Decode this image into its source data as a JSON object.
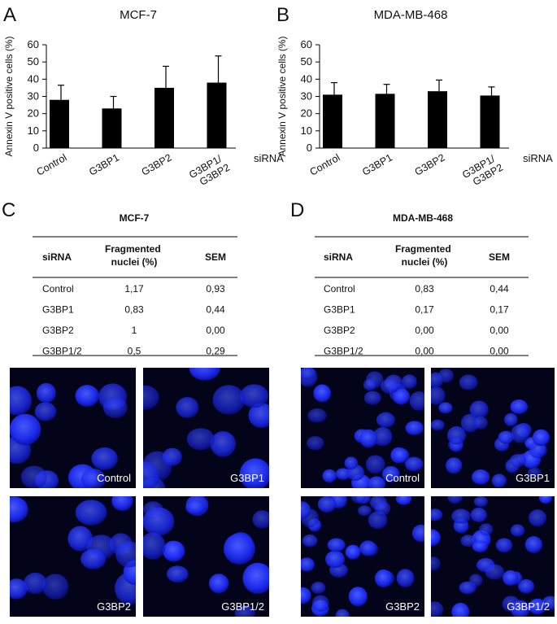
{
  "chart_data": [
    {
      "type": "bar",
      "label": "A",
      "title": "MCF-7",
      "ylabel": "Annexin V positive cells (%)",
      "xlabel": "siRNA",
      "categories": [
        "Control",
        "G3BP1",
        "G3BP2",
        "G3BP1/ G3BP2"
      ],
      "values": [
        28,
        23,
        35,
        38
      ],
      "errors": [
        8.5,
        7,
        12.5,
        15.5
      ],
      "color": "#000000",
      "ylim": [
        0,
        60
      ],
      "yticks": [
        0,
        10,
        20,
        30,
        40,
        50,
        60
      ]
    },
    {
      "type": "bar",
      "label": "B",
      "title": "MDA-MB-468",
      "ylabel": "Annexin V positive cells (%)",
      "xlabel": "siRNA",
      "categories": [
        "Control",
        "G3BP1",
        "G3BP2",
        "G3BP1/ G3BP2"
      ],
      "values": [
        31,
        31.5,
        33,
        30.5
      ],
      "errors": [
        7,
        5.5,
        6.5,
        5
      ],
      "color": "#000000",
      "ylim": [
        0,
        60
      ],
      "yticks": [
        0,
        10,
        20,
        30,
        40,
        50,
        60
      ]
    }
  ],
  "tables": [
    {
      "label": "C",
      "title": "MCF-7",
      "columns": [
        "siRNA",
        "Fragmented nuclei (%)",
        "SEM"
      ],
      "rows": [
        [
          "Control",
          "1,17",
          "0,93"
        ],
        [
          "G3BP1",
          "0,83",
          "0,44"
        ],
        [
          "G3BP2",
          "1",
          "0,00"
        ],
        [
          "G3BP1/2",
          "0,5",
          "0,29"
        ]
      ]
    },
    {
      "label": "D",
      "title": "MDA-MB-468",
      "columns": [
        "siRNA",
        "Fragmented nuclei (%)",
        "SEM"
      ],
      "rows": [
        [
          "Control",
          "0,83",
          "0,44"
        ],
        [
          "G3BP1",
          "0,17",
          "0,17"
        ],
        [
          "G3BP2",
          "0,00",
          "0,00"
        ],
        [
          "G3BP1/2",
          "0,00",
          "0,00"
        ]
      ]
    }
  ],
  "micrographs": [
    {
      "labels": [
        "Control",
        "G3BP1",
        "G3BP2",
        "G3BP1/2"
      ]
    },
    {
      "labels": [
        "Control",
        "G3BP1",
        "G3BP2",
        "G3BP1/2"
      ]
    }
  ]
}
